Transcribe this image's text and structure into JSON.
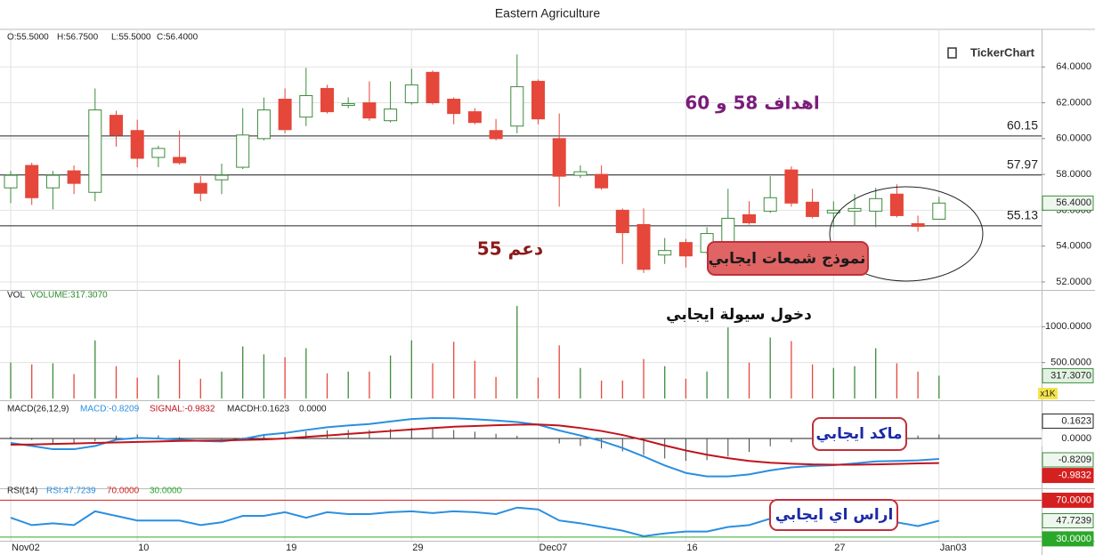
{
  "title": "Eastern Agriculture",
  "logo": "TickerChart",
  "chart_data": [
    {
      "type": "candlestick",
      "ohlc_text": [
        "O:55.5000",
        "H:56.7500",
        "L:55.5000",
        "C:56.4000"
      ],
      "open": [
        57.25,
        58.5,
        57.25,
        58.2,
        57.0,
        61.3,
        60.45,
        58.95,
        58.95,
        57.5,
        57.7,
        58.4,
        60.0,
        62.2,
        61.2,
        62.8,
        61.85,
        62.0,
        61.0,
        62.0,
        63.7,
        62.2,
        61.5,
        60.45,
        60.7,
        63.2,
        60.0,
        57.95,
        58.0,
        56.0,
        55.2,
        53.5,
        54.2,
        53.65,
        54.2,
        55.75,
        55.95,
        58.25,
        56.45,
        55.85,
        55.95,
        55.95,
        56.9,
        55.25,
        55.5
      ],
      "high": [
        58.2,
        58.65,
        58.2,
        58.5,
        62.8,
        61.55,
        61.05,
        59.6,
        60.45,
        57.9,
        58.6,
        61.7,
        62.3,
        62.8,
        63.95,
        63.0,
        62.3,
        63.2,
        63.2,
        63.9,
        63.8,
        62.3,
        61.7,
        61.1,
        64.7,
        63.3,
        61.4,
        58.5,
        58.5,
        56.1,
        56.1,
        54.45,
        54.4,
        55.05,
        57.2,
        56.5,
        57.9,
        58.45,
        57.2,
        56.5,
        56.9,
        57.25,
        57.45,
        55.7,
        56.75
      ],
      "low": [
        56.4,
        56.3,
        56.05,
        56.9,
        56.5,
        59.55,
        58.4,
        58.4,
        58.55,
        56.5,
        56.9,
        58.3,
        59.9,
        60.3,
        60.7,
        61.4,
        61.7,
        61.0,
        60.9,
        61.9,
        61.9,
        60.8,
        60.8,
        59.9,
        60.3,
        60.8,
        56.2,
        57.8,
        57.15,
        53.0,
        52.5,
        53.0,
        52.8,
        53.55,
        54.1,
        55.2,
        55.85,
        56.2,
        55.55,
        55.05,
        55.1,
        55.05,
        55.6,
        54.8,
        55.5
      ],
      "close": [
        57.95,
        56.7,
        57.95,
        57.5,
        61.6,
        60.2,
        58.9,
        59.45,
        58.65,
        56.95,
        57.95,
        60.2,
        61.6,
        60.5,
        62.4,
        61.5,
        61.95,
        61.15,
        61.65,
        63.0,
        62.0,
        61.4,
        60.9,
        60.0,
        62.9,
        61.1,
        57.9,
        58.15,
        57.25,
        54.75,
        52.7,
        53.75,
        53.45,
        54.7,
        55.55,
        55.3,
        56.7,
        56.4,
        55.65,
        56.0,
        56.1,
        56.65,
        55.7,
        55.1,
        56.4
      ],
      "up_color": "#3d8b3d",
      "down_color": "#e5473a",
      "ylim": [
        51.55,
        66.05
      ],
      "yticks": [
        {
          "value": 52,
          "label": "52.0000"
        },
        {
          "value": 54,
          "label": "54.0000"
        },
        {
          "value": 56,
          "label": "56.0000"
        },
        {
          "value": 58,
          "label": "58.0000"
        },
        {
          "value": 60,
          "label": "60.0000"
        },
        {
          "value": 62,
          "label": "62.0000"
        },
        {
          "value": 64,
          "label": "64.0000"
        }
      ],
      "levels": [
        {
          "value": 60.15,
          "label": "60.15"
        },
        {
          "value": 57.97,
          "label": "57.97"
        },
        {
          "value": 55.13,
          "label": "55.13"
        }
      ],
      "last_tick": {
        "value": 56.4,
        "label": "56.4000"
      },
      "annotations": [
        {
          "text": "اهداف 58 و 60",
          "color": "#7b1c7b"
        },
        {
          "text": "دعم 55",
          "color": "#8b1a1a"
        },
        {
          "text": "نموذج شمعات ايجابي",
          "color": "#1a1a1a"
        }
      ]
    },
    {
      "type": "bar",
      "header": [
        "VOL",
        "VOLUME:317.3070"
      ],
      "values": [
        500,
        475,
        490,
        340,
        810,
        450,
        290,
        325,
        540,
        275,
        375,
        725,
        615,
        575,
        700,
        350,
        375,
        375,
        600,
        810,
        490,
        790,
        525,
        300,
        1290,
        290,
        740,
        425,
        250,
        250,
        550,
        450,
        275,
        375,
        990,
        500,
        850,
        800,
        475,
        425,
        450,
        700,
        490,
        375,
        317.307
      ],
      "ylim": [
        0,
        1500
      ],
      "yticks": [
        {
          "value": 500,
          "label": "500.0000"
        },
        {
          "value": 1000,
          "label": "1000.0000"
        }
      ],
      "last_tick": {
        "value": 317.307,
        "label": "317.3070"
      },
      "unit_label": "x1K",
      "annotations": [
        {
          "text": "دخول سيولة ايجابي",
          "color": "#111111"
        }
      ]
    },
    {
      "type": "macd",
      "header": [
        "MACD(26,12,9)",
        "MACD:-0.8209",
        "SIGNAL:-0.9832",
        "MACDH:0.1623",
        "0.0000"
      ],
      "series": [
        {
          "name": "MACD",
          "color": "#2a8fe0",
          "values": [
            -0.18,
            -0.3,
            -0.43,
            -0.43,
            -0.3,
            -0.05,
            0.02,
            0.0,
            -0.05,
            -0.1,
            -0.12,
            -0.02,
            0.14,
            0.22,
            0.34,
            0.45,
            0.52,
            0.58,
            0.68,
            0.78,
            0.82,
            0.81,
            0.77,
            0.72,
            0.66,
            0.55,
            0.32,
            0.12,
            -0.1,
            -0.38,
            -0.72,
            -1.08,
            -1.38,
            -1.52,
            -1.52,
            -1.44,
            -1.28,
            -1.16,
            -1.1,
            -1.07,
            -1.0,
            -0.92,
            -0.9,
            -0.88,
            -0.8209
          ]
        },
        {
          "name": "SIGNAL",
          "color": "#c0141c",
          "values": [
            -0.25,
            -0.24,
            -0.22,
            -0.2,
            -0.18,
            -0.16,
            -0.14,
            -0.12,
            -0.1,
            -0.09,
            -0.08,
            -0.06,
            -0.04,
            0.0,
            0.06,
            0.12,
            0.18,
            0.24,
            0.3,
            0.36,
            0.42,
            0.47,
            0.5,
            0.53,
            0.55,
            0.56,
            0.52,
            0.42,
            0.3,
            0.14,
            -0.06,
            -0.28,
            -0.48,
            -0.65,
            -0.79,
            -0.9,
            -0.97,
            -1.01,
            -1.04,
            -1.05,
            -1.05,
            -1.04,
            -1.02,
            -1.0,
            -0.9832
          ]
        }
      ],
      "histogram": [
        0.07,
        -0.06,
        -0.21,
        -0.23,
        -0.12,
        0.11,
        0.16,
        0.12,
        0.05,
        -0.01,
        -0.04,
        0.04,
        0.18,
        0.22,
        0.28,
        0.33,
        0.34,
        0.34,
        0.38,
        0.42,
        0.4,
        0.34,
        0.27,
        0.19,
        0.11,
        -0.01,
        -0.2,
        -0.3,
        -0.4,
        -0.52,
        -0.66,
        -0.8,
        -0.9,
        -0.87,
        -0.73,
        -0.54,
        -0.31,
        -0.15,
        -0.06,
        -0.02,
        0.05,
        0.12,
        0.12,
        0.12,
        0.1623
      ],
      "ylim": [
        -1.96,
        1.46
      ],
      "boxes": [
        {
          "value": 0.1623,
          "label": "0.1623"
        },
        {
          "value": 0,
          "label": "0.0000"
        },
        {
          "value": -0.8209,
          "label": "-0.8209"
        },
        {
          "value": -0.9832,
          "label": "-0.9832"
        }
      ],
      "annotations": [
        {
          "text": "ماكد ايجابي",
          "color": "#1a2aa8"
        }
      ]
    },
    {
      "type": "rsi",
      "header": [
        "RSI(14)",
        "RSI:47.7239"
      ],
      "series": [
        {
          "name": "RSI",
          "color": "#2a8fe0",
          "values": [
            51,
            43,
            45,
            43,
            58,
            53,
            48,
            48,
            48,
            43,
            46,
            53,
            53,
            57,
            51,
            57,
            55,
            55,
            57,
            58,
            56,
            58,
            57,
            55,
            62,
            60,
            48,
            45,
            41,
            37,
            31,
            34,
            36,
            36,
            41,
            43,
            50,
            50,
            43,
            42,
            44,
            47,
            46,
            42,
            47.7239
          ]
        }
      ],
      "levels": [
        {
          "value": 70,
          "label": "70.0000",
          "color": "#d42020"
        },
        {
          "value": 30,
          "label": "30.0000",
          "color": "#2aa82a"
        }
      ],
      "last_tick": {
        "value": 47.7239,
        "label": "47.7239"
      },
      "ylim": [
        26,
        82
      ],
      "x": [
        "Nov02",
        null,
        null,
        null,
        null,
        null,
        "10",
        null,
        null,
        null,
        null,
        null,
        null,
        "19",
        null,
        null,
        null,
        null,
        null,
        "29",
        null,
        null,
        null,
        null,
        null,
        "Dec07",
        null,
        null,
        null,
        null,
        null,
        null,
        "16",
        null,
        null,
        null,
        null,
        null,
        null,
        "27",
        null,
        null,
        null,
        null,
        "Jan03"
      ],
      "annotations": [
        {
          "text": "اراس اي ايجابي",
          "color": "#1a2aa8"
        }
      ]
    }
  ]
}
